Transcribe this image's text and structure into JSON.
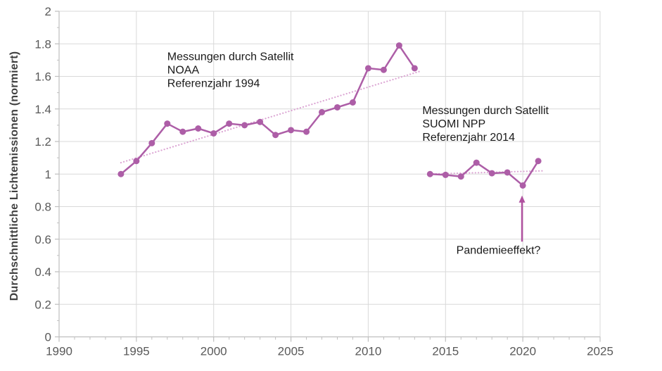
{
  "chart_data": {
    "type": "line",
    "title": "",
    "xlabel": "",
    "ylabel": "Durchschnittliche Lichtemissionen (normiert)",
    "xlim": [
      1990,
      2025
    ],
    "ylim": [
      0,
      2
    ],
    "x_major_ticks": [
      1990,
      1995,
      2000,
      2005,
      2010,
      2015,
      2020,
      2025
    ],
    "x_tick_labels": [
      "1990",
      "1995",
      "2000",
      "2005",
      "2010",
      "2015",
      "2020",
      "2025"
    ],
    "x_minor_step": 1,
    "y_major_ticks": [
      0,
      0.2,
      0.4,
      0.6,
      0.8,
      1,
      1.2,
      1.4,
      1.6,
      1.8,
      2
    ],
    "y_tick_labels": [
      "0",
      "0.2",
      "0.4",
      "0.6",
      "0.8",
      "1",
      "1.2",
      "1.4",
      "1.6",
      "1.8",
      "2"
    ],
    "y_minor_step": 0.1,
    "grid": true,
    "legend": "none",
    "series": [
      {
        "name": "NOAA",
        "x": [
          1994,
          1995,
          1996,
          1997,
          1998,
          1999,
          2000,
          2001,
          2002,
          2003,
          2004,
          2005,
          2006,
          2007,
          2008,
          2009,
          2010,
          2011,
          2012,
          2013
        ],
        "values": [
          1.0,
          1.08,
          1.19,
          1.31,
          1.26,
          1.28,
          1.25,
          1.31,
          1.3,
          1.32,
          1.24,
          1.27,
          1.26,
          1.38,
          1.41,
          1.44,
          1.65,
          1.64,
          1.79,
          1.65
        ]
      },
      {
        "name": "SUOMI NPP",
        "x": [
          2014,
          2015,
          2016,
          2017,
          2018,
          2019,
          2020,
          2021
        ],
        "values": [
          1.0,
          0.995,
          0.985,
          1.07,
          1.005,
          1.01,
          0.93,
          1.08
        ]
      }
    ],
    "trendlines": [
      {
        "name": "noaa-trend",
        "x": [
          1994,
          2013.3
        ],
        "values": [
          1.07,
          1.63
        ]
      },
      {
        "name": "suomi-trend",
        "x": [
          2014,
          2021.4
        ],
        "values": [
          1.0,
          1.02
        ]
      }
    ],
    "annotations": [
      {
        "name": "noaa-label",
        "text": "Messungen durch Satellit\nNOAA\nReferenzjahr 1994",
        "x": 1997.0,
        "y": 1.76
      },
      {
        "name": "suomi-label",
        "text": "Messungen durch Satellit\nSUOMI NPP\nReferenzjahr 2014",
        "x": 2013.5,
        "y": 1.43
      },
      {
        "name": "pandemic-label",
        "text": "Pandemieeffekt?",
        "x": 2015.7,
        "y": 0.57
      }
    ],
    "arrow": {
      "x": 2019.95,
      "y_from": 0.585,
      "y_to": 0.868
    }
  },
  "colors": {
    "series": "#ad5ea7",
    "trend": "#dca6d4",
    "arrow": "#b0519f",
    "grid": "#d9d9d9",
    "axis": "#bfbfbf",
    "tick_label": "#595959",
    "axis_title": "#404040",
    "annotation": "#1a1a1a"
  }
}
